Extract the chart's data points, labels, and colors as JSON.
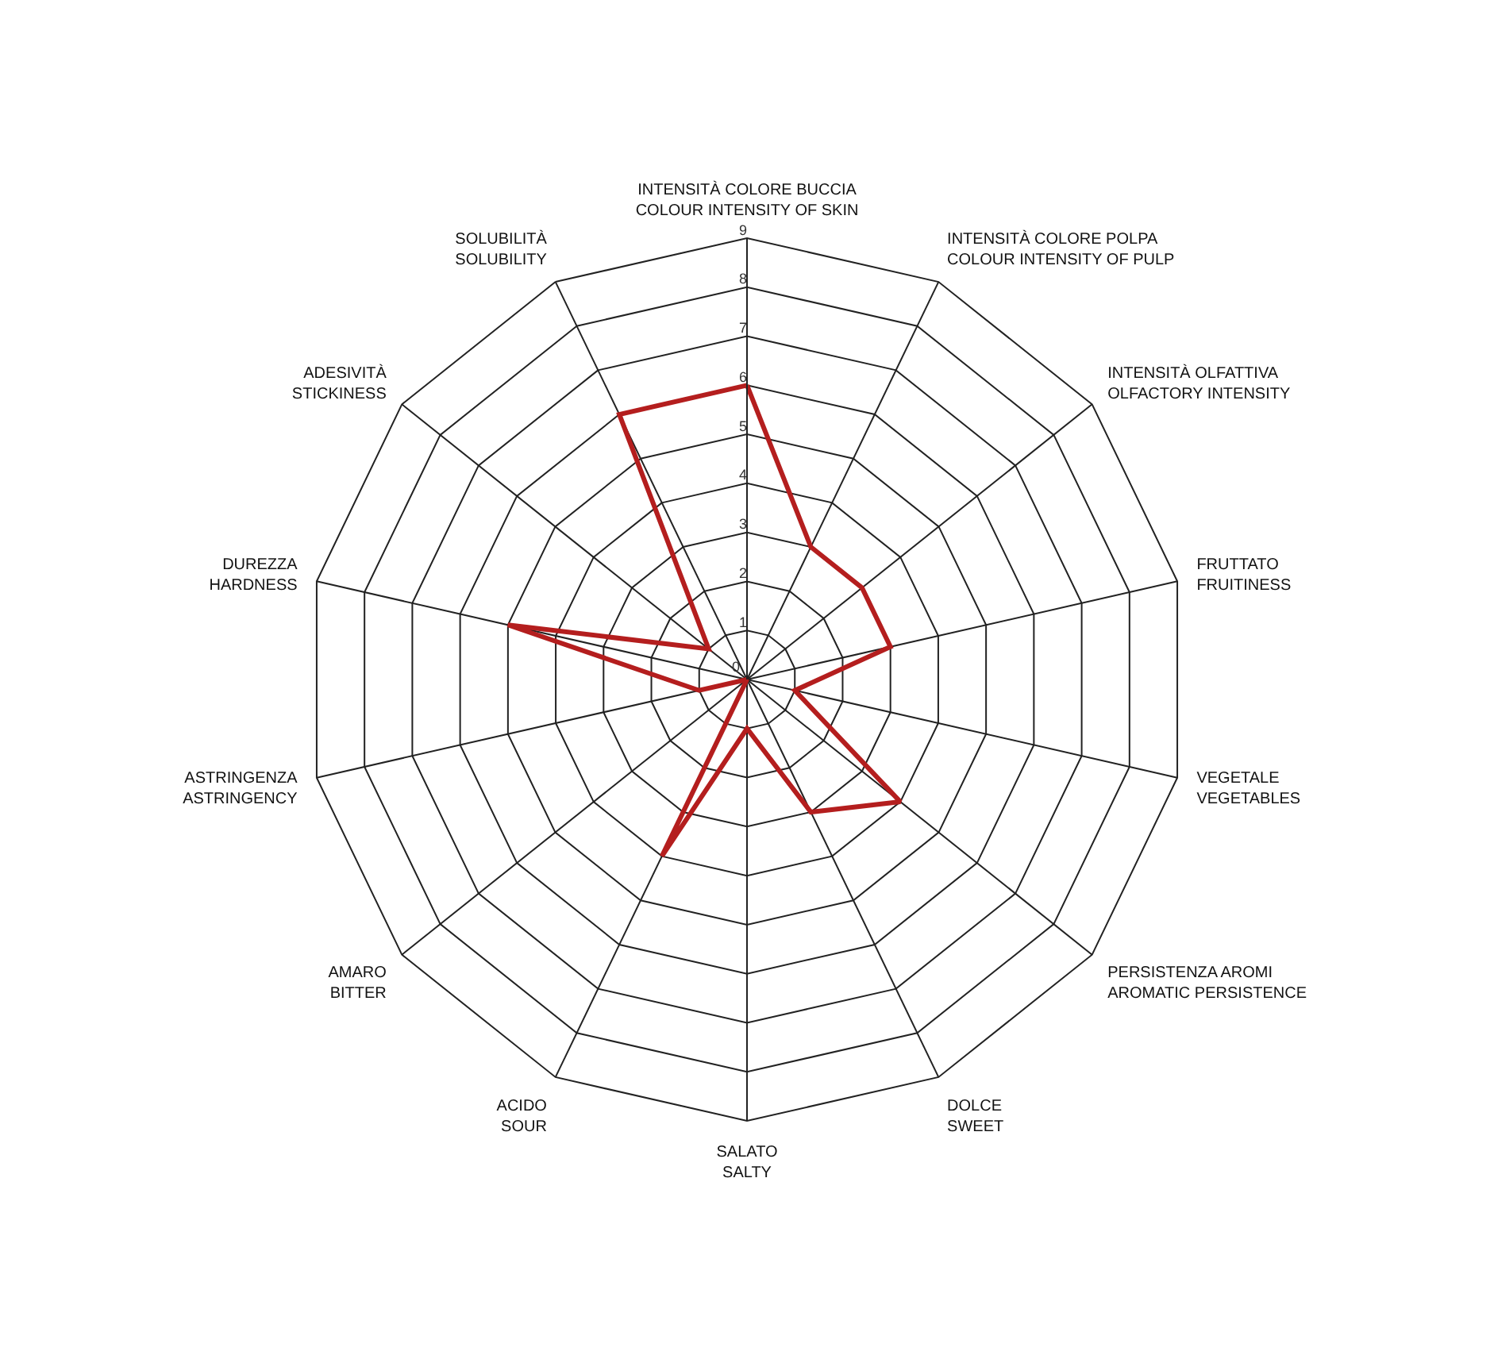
{
  "chart_data": {
    "type": "radar",
    "categories": [
      "INTENSITÀ COLORE BUCCIA\nCOLOUR INTENSITY OF SKIN",
      "INTENSITÀ COLORE POLPA\nCOLOUR INTENSITY OF PULP",
      "INTENSITÀ OLFATTIVA\nOLFACTORY INTENSITY",
      "FRUTTATO\nFRUITINESS",
      "VEGETALE\nVEGETABLES",
      "PERSISTENZA AROMI\nAROMATIC PERSISTENCE",
      "DOLCE\nSWEET",
      "SALATO\nSALTY",
      "ACIDO\nSOUR",
      "AMARO\nBITTER",
      "ASTRINGENZA\nASTRINGENCY",
      "DUREZZA\nHARDNESS",
      "ADESIVITÀ\nSTICKINESS",
      "SOLUBILITÀ\nSOLUBILITY"
    ],
    "series": [
      {
        "color": "#b41e1e",
        "values": [
          6,
          3,
          3,
          3,
          1,
          4,
          3,
          1,
          4,
          0,
          1,
          5,
          1,
          6
        ]
      }
    ],
    "ylim": [
      0,
      9
    ],
    "yticks": [
      0,
      1,
      2,
      3,
      4,
      5,
      6,
      7,
      8,
      9
    ],
    "grid": true,
    "marker": "none",
    "line_style": "solid"
  }
}
